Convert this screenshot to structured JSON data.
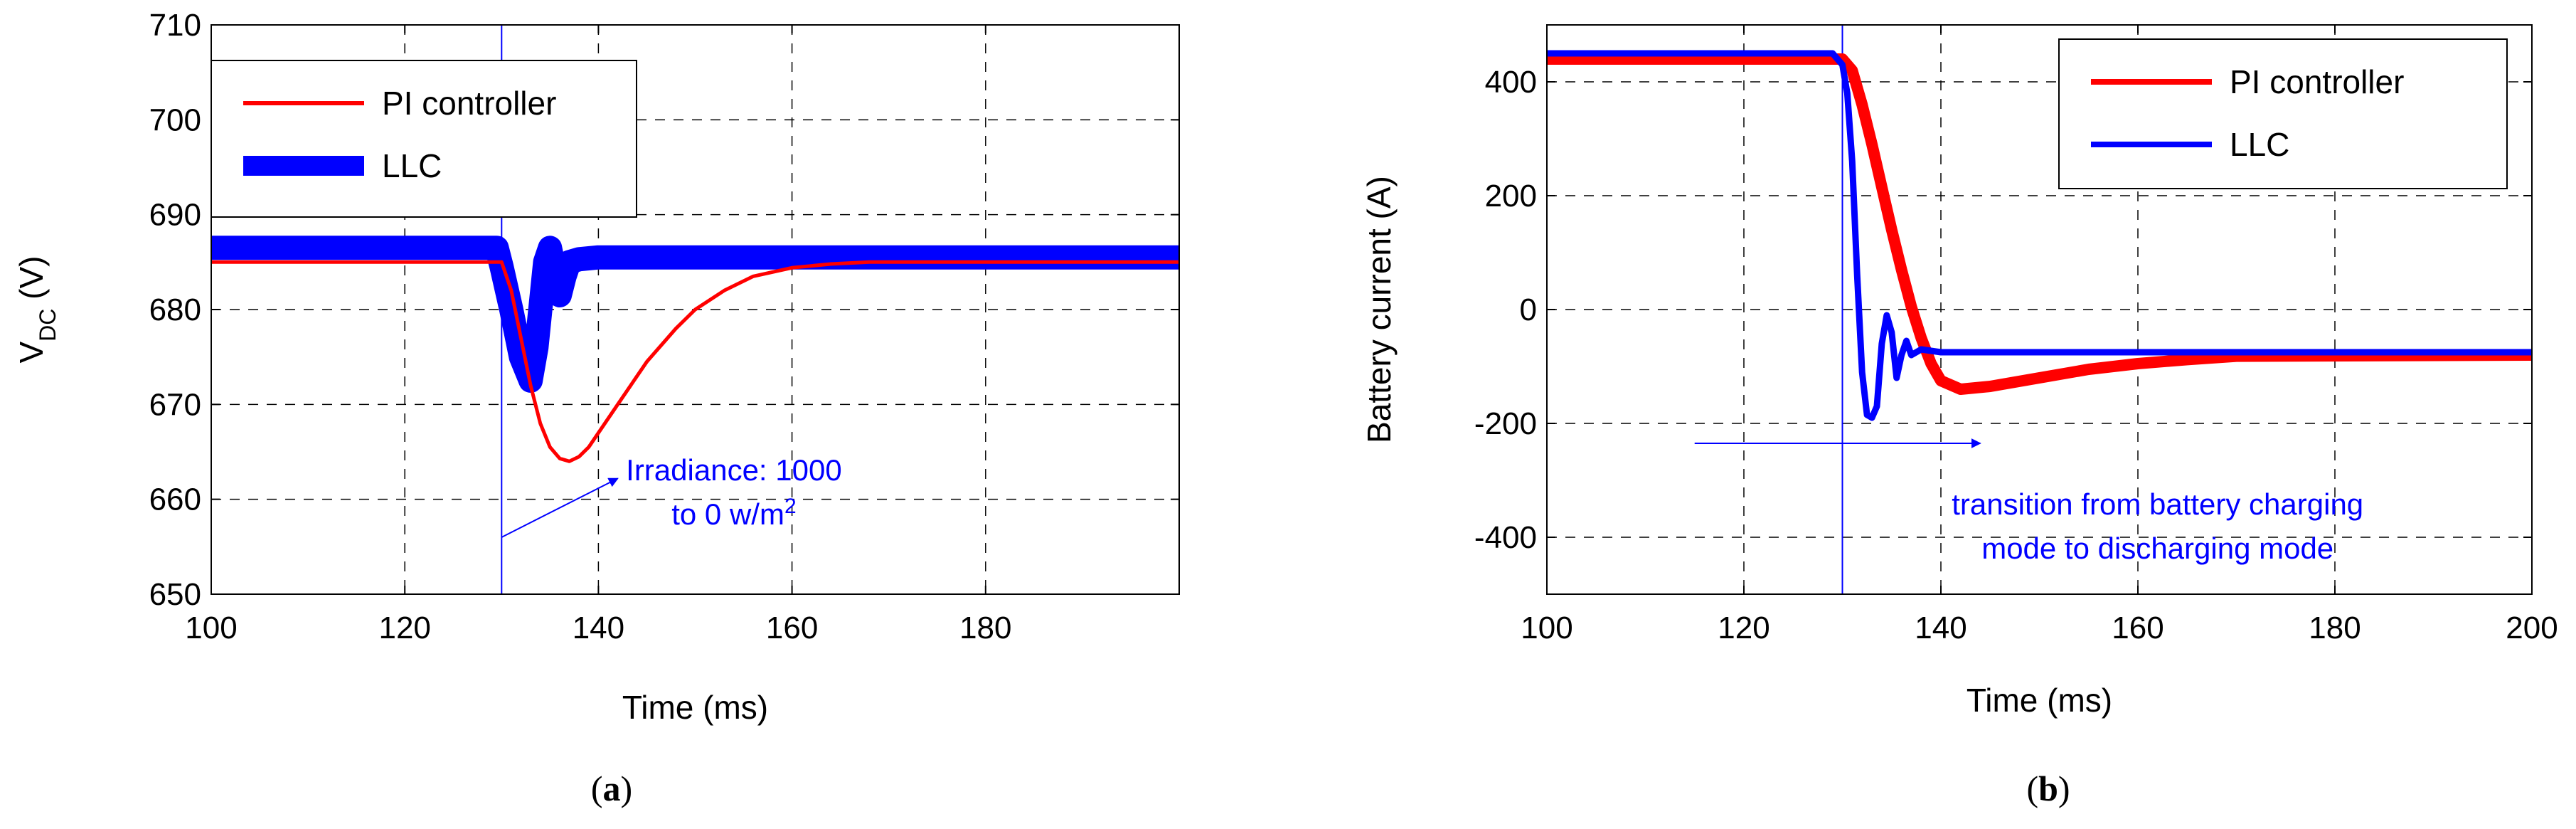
{
  "chart_data": [
    {
      "type": "line",
      "panel_label": "a",
      "xlabel": "Time (ms)",
      "ylabel_main": "V",
      "ylabel_sub": "DC",
      "ylabel_unit": " (V)",
      "xlim": [
        100,
        200
      ],
      "ylim": [
        650,
        710
      ],
      "xticks": [
        100,
        120,
        140,
        160,
        180
      ],
      "yticks": [
        650,
        660,
        670,
        680,
        690,
        700,
        710
      ],
      "grid": true,
      "legend_position": "top-left",
      "series": [
        {
          "name": "PI controller",
          "color": "#ff0000",
          "width": 5,
          "x": [
            100,
            130,
            131,
            132,
            133,
            134,
            135,
            136,
            137,
            138,
            139,
            140,
            142,
            145,
            148,
            150,
            153,
            156,
            160,
            164,
            168,
            175,
            200
          ],
          "y": [
            685,
            685,
            682,
            677,
            672,
            668,
            665.5,
            664.3,
            664,
            664.5,
            665.5,
            667,
            670,
            674.5,
            678,
            680,
            682,
            683.5,
            684.4,
            684.8,
            685,
            685,
            685
          ]
        },
        {
          "name": "LLC",
          "color": "#0000ff",
          "width": 34,
          "x": [
            100,
            129.5,
            130,
            131,
            132,
            133,
            133.6,
            134,
            134.5,
            135,
            135.5,
            136,
            136.5,
            137,
            138,
            140,
            145,
            200
          ],
          "y": [
            686.5,
            686.5,
            684.5,
            680,
            675,
            672.5,
            676,
            680,
            685,
            686.5,
            684,
            681.5,
            683.5,
            685,
            685.3,
            685.5,
            685.5,
            685.5
          ]
        }
      ],
      "annotation": {
        "line1": "Irradiance: 1000",
        "line2": "to 0 w/m",
        "superscript": "2",
        "color": "#0000ff",
        "event_x": 130,
        "arrow_from": [
          130,
          656
        ],
        "arrow_to": [
          142,
          662.2
        ],
        "label_x": 154,
        "label_y": 662
      }
    },
    {
      "type": "line",
      "panel_label": "b",
      "xlabel": "Time (ms)",
      "ylabel": "Battery current (A)",
      "xlim": [
        100,
        200
      ],
      "ylim": [
        -500,
        500
      ],
      "xticks": [
        100,
        120,
        140,
        160,
        180,
        200
      ],
      "yticks": [
        -400,
        -200,
        0,
        200,
        400
      ],
      "grid": true,
      "legend_position": "top-right",
      "series": [
        {
          "name": "PI controller",
          "color": "#ff0000",
          "width": 16,
          "x": [
            100,
            130,
            131,
            132,
            133,
            134,
            135,
            136,
            137,
            138,
            139,
            140,
            142,
            145,
            150,
            155,
            160,
            165,
            170,
            200
          ],
          "y": [
            440,
            440,
            420,
            360,
            290,
            215,
            140,
            70,
            5,
            -50,
            -95,
            -125,
            -140,
            -135,
            -120,
            -105,
            -95,
            -88,
            -82,
            -80
          ]
        },
        {
          "name": "LLC",
          "color": "#0000ff",
          "width": 9,
          "x": [
            100,
            129,
            130,
            130.5,
            131,
            131.5,
            132,
            132.5,
            133,
            133.5,
            134,
            134.5,
            135,
            135.5,
            136,
            136.5,
            137,
            138,
            140,
            145,
            200
          ],
          "y": [
            450,
            450,
            430,
            380,
            260,
            60,
            -110,
            -185,
            -190,
            -170,
            -60,
            -10,
            -40,
            -120,
            -80,
            -55,
            -80,
            -70,
            -75,
            -75,
            -75
          ]
        }
      ],
      "annotation": {
        "line1": "transition from battery charging",
        "line2": "mode to discharging mode",
        "color": "#0000ff",
        "event_x": 130,
        "arrow_from": [
          115,
          -235
        ],
        "arrow_to": [
          144,
          -235
        ],
        "label_x": 162,
        "label_y": -360
      }
    }
  ]
}
